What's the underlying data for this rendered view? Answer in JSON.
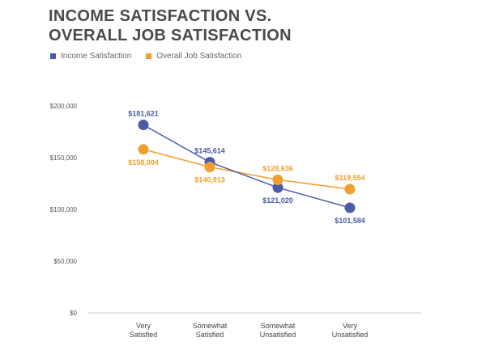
{
  "chart_data": {
    "type": "line",
    "title": "INCOME SATISFACTION VS. OVERALL JOB SATISFACTION",
    "xlabel": "",
    "ylabel": "",
    "ylim": [
      0,
      200000
    ],
    "yticks": [
      0,
      50000,
      100000,
      150000,
      200000
    ],
    "ytick_labels": [
      "$0",
      "$50,000",
      "$100,000",
      "$150,000",
      "$200,000"
    ],
    "categories": [
      [
        "Very",
        "Satisfied"
      ],
      [
        "Somewhat",
        "Satisfied"
      ],
      [
        "Somewhat",
        "Unsatisfied"
      ],
      [
        "Very",
        "Unsatisfied"
      ]
    ],
    "grid": false,
    "legend": "top-left",
    "series": [
      {
        "name": "Income Satisfaction",
        "color": "#4a5ba8",
        "values": [
          181621,
          145614,
          121020,
          101584
        ],
        "labels": [
          "$181,621",
          "$145,614",
          "$121,020",
          "$101,584"
        ],
        "label_pos": [
          "above",
          "above",
          "below",
          "below"
        ]
      },
      {
        "name": "Overall Job Satisfaction",
        "color": "#f0a030",
        "values": [
          158004,
          140913,
          128636,
          119554
        ],
        "labels": [
          "$158,004",
          "$140,913",
          "$128,636",
          "$119,554"
        ],
        "label_pos": [
          "below",
          "below",
          "above",
          "above"
        ]
      }
    ]
  }
}
